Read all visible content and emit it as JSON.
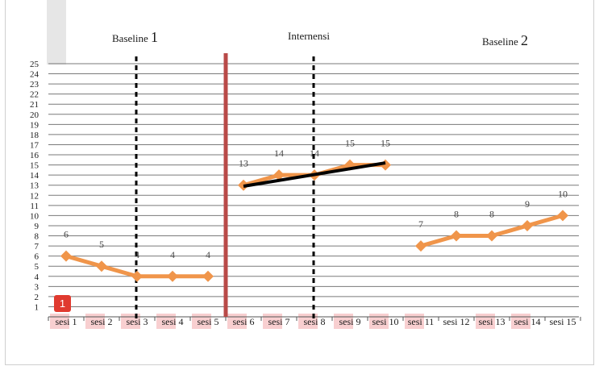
{
  "badge": "1",
  "phases": [
    {
      "name": "Baseline",
      "number": "1"
    },
    {
      "name": "Internensi",
      "number": ""
    },
    {
      "name": "Baseline",
      "number": "2"
    }
  ],
  "chart_data": {
    "type": "line",
    "title": "",
    "xlabel": "",
    "ylabel": "",
    "ylim": [
      0,
      25
    ],
    "y_ticks": [
      1,
      2,
      3,
      4,
      5,
      6,
      7,
      8,
      9,
      10,
      11,
      12,
      13,
      14,
      15,
      16,
      17,
      18,
      19,
      20,
      21,
      22,
      23,
      24,
      25
    ],
    "categories": [
      "sesi 1",
      "sesi 2",
      "sesi 3",
      "sesi 4",
      "sesi 5",
      "sesi 6",
      "sesi 7",
      "sesi 8",
      "sesi 9",
      "sesi 10",
      "sesi 11",
      "sesi 12",
      "sesi 13",
      "sesi 14",
      "sesi 15"
    ],
    "category_highlight": [
      "sesi",
      "sesi",
      "sesi",
      "sesi",
      "sesi",
      "sesi",
      "sesi",
      "sesi",
      "sesi",
      "sesi",
      "sesi",
      "",
      "sesi",
      "sesi",
      ""
    ],
    "grid": true,
    "series": [
      {
        "values": [
          6,
          5,
          4,
          4,
          4,
          null,
          null,
          null,
          null,
          null,
          null,
          null,
          null,
          null,
          null
        ],
        "labels": [
          "6",
          "5",
          "4",
          "4",
          "4",
          "",
          "",
          "",
          "",
          "",
          "",
          "",
          "",
          "",
          ""
        ],
        "color": "#f0954a"
      },
      {
        "values": [
          null,
          null,
          null,
          null,
          null,
          13,
          14,
          14,
          15,
          15,
          null,
          null,
          null,
          null,
          null
        ],
        "labels": [
          "",
          "",
          "",
          "",
          "",
          "13",
          "14",
          "14",
          "15",
          "15",
          "",
          "",
          "",
          "",
          ""
        ],
        "color": "#f0954a"
      },
      {
        "values": [
          null,
          null,
          null,
          null,
          null,
          null,
          null,
          null,
          null,
          null,
          7,
          8,
          8,
          9,
          10
        ],
        "labels": [
          "",
          "",
          "",
          "",
          "",
          "",
          "",
          "",
          "",
          "",
          "7",
          "8",
          "8",
          "9",
          "10"
        ],
        "color": "#f0954a"
      }
    ],
    "trend_line": {
      "from": {
        "x": "sesi 6",
        "y": 12.9
      },
      "to": {
        "x": "sesi 10",
        "y": 15.2
      },
      "color": "#000000"
    },
    "phase_change_after": "sesi 5",
    "phase_change_color": "#b94a48",
    "dashed_markers_at": [
      "sesi 3",
      "sesi 8"
    ],
    "highlight_color": "#f8cfd0"
  }
}
